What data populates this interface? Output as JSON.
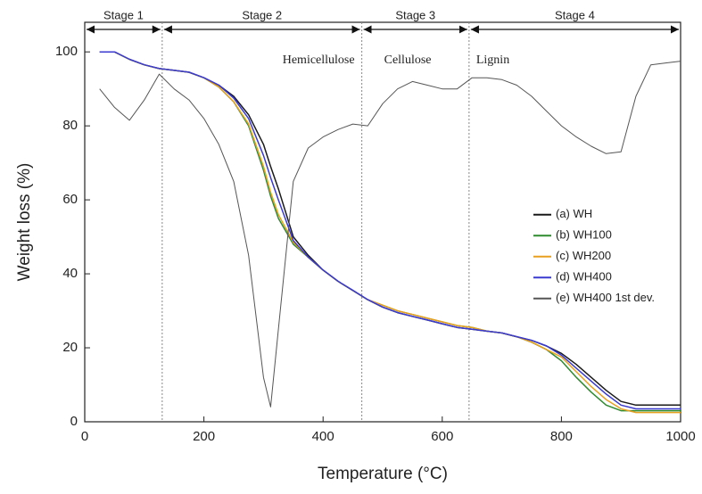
{
  "chart_data": {
    "type": "line",
    "x_label": "Temperature (°C)",
    "y_label": "Weight loss (%)",
    "x": [
      25,
      50,
      75,
      100,
      125,
      150,
      175,
      200,
      225,
      250,
      275,
      300,
      312,
      325,
      350,
      375,
      400,
      425,
      450,
      475,
      500,
      525,
      550,
      575,
      600,
      625,
      650,
      675,
      700,
      725,
      750,
      775,
      800,
      825,
      850,
      875,
      900,
      925,
      950,
      975,
      1000
    ],
    "series": [
      {
        "name": "(a) WH",
        "color": "#1a1a1a",
        "values": [
          100,
          100,
          98,
          96.5,
          95.5,
          95,
          94.5,
          93,
          91,
          88,
          83,
          75,
          69,
          63,
          50,
          45,
          41,
          38,
          35.5,
          33,
          31,
          29.5,
          28.5,
          27.5,
          26.5,
          25.5,
          25,
          24.5,
          24,
          23,
          22,
          20.5,
          18.5,
          15.5,
          12,
          8.5,
          5.5,
          4.5,
          4.5,
          4.5,
          4.5
        ]
      },
      {
        "name": "(b) WH100",
        "color": "#2e8b2e",
        "values": [
          100,
          100,
          98,
          96.5,
          95.5,
          95,
          94.5,
          93,
          90.5,
          86.5,
          80,
          68,
          61,
          55,
          48,
          44.5,
          41,
          38,
          35.5,
          33,
          31.5,
          30,
          29,
          28,
          27,
          26,
          25.5,
          24.5,
          24,
          23,
          21.5,
          19.5,
          16.5,
          12,
          8,
          4.5,
          3,
          3,
          3,
          3,
          3
        ]
      },
      {
        "name": "(c) WH200",
        "color": "#e8a020",
        "values": [
          100,
          100,
          98,
          96.5,
          95.5,
          95,
          94.5,
          93,
          90.5,
          86.5,
          80.5,
          69,
          62,
          56,
          48.5,
          44.5,
          41,
          38,
          35.5,
          33,
          31.5,
          30,
          29,
          28,
          27,
          26,
          25.5,
          24.5,
          24,
          23,
          21.5,
          19.5,
          17.5,
          13.5,
          9.5,
          6,
          3.5,
          2.5,
          2.5,
          2.5,
          2.5
        ]
      },
      {
        "name": "(d) WH400",
        "color": "#3a3ad0",
        "values": [
          100,
          100,
          98,
          96.5,
          95.5,
          95,
          94.5,
          93,
          91,
          87.5,
          82,
          72,
          66,
          60,
          49,
          44.5,
          41,
          38,
          35.5,
          33,
          31,
          29.5,
          28.5,
          27.5,
          26.5,
          25.5,
          25,
          24.5,
          24,
          23,
          22,
          20.5,
          18,
          14.5,
          11,
          7.5,
          4.5,
          3.5,
          3.5,
          3.5,
          3.5
        ]
      },
      {
        "name": "(e) WH400 1st dev.",
        "color": "#555555",
        "values": [
          90,
          85,
          81.5,
          87,
          94,
          90,
          87,
          82,
          75,
          65,
          45,
          12,
          4,
          25,
          65,
          74,
          77,
          79,
          80.5,
          80,
          86,
          90,
          92,
          91,
          90,
          90,
          93,
          93,
          92.5,
          91,
          88,
          84,
          80,
          77,
          74.5,
          72.5,
          73,
          88,
          96.5,
          97,
          97.5
        ]
      }
    ],
    "stages": [
      {
        "label": "Stage 1",
        "range": [
          0,
          130
        ]
      },
      {
        "label": "Stage 2",
        "range": [
          130,
          465
        ],
        "note": "Hemicellulose"
      },
      {
        "label": "Stage 3",
        "range": [
          465,
          645
        ],
        "note": "Cellulose"
      },
      {
        "label": "Stage 4",
        "range": [
          645,
          1000
        ],
        "note": "Lignin"
      }
    ],
    "xlim": [
      0,
      1000
    ],
    "xticks": [
      0,
      200,
      400,
      600,
      800,
      1000
    ],
    "ylim": [
      0,
      108
    ],
    "yticks": [
      0,
      20,
      40,
      60,
      80,
      100
    ],
    "legend": "right"
  }
}
